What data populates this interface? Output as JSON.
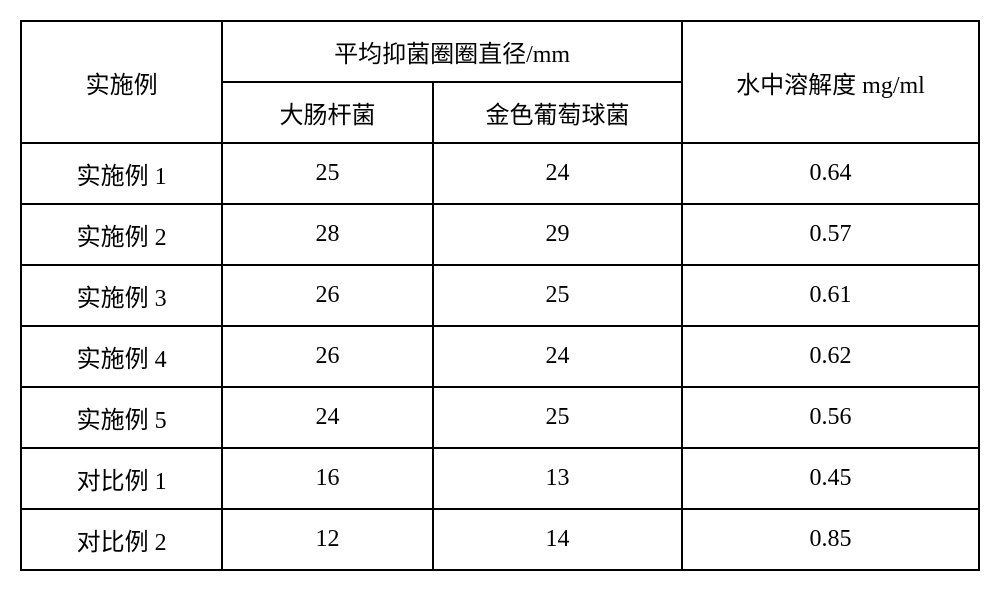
{
  "table": {
    "header": {
      "row_label": "实施例",
      "diameter_group": "平均抑菌圈圈直径/mm",
      "ecoli": "大肠杆菌",
      "staph": "金色葡萄球菌",
      "solubility": "水中溶解度 mg/ml"
    },
    "rows": [
      {
        "label": "实施例 1",
        "ecoli": "25",
        "staph": "24",
        "solubility": "0.64"
      },
      {
        "label": "实施例 2",
        "ecoli": "28",
        "staph": "29",
        "solubility": "0.57"
      },
      {
        "label": "实施例 3",
        "ecoli": "26",
        "staph": "25",
        "solubility": "0.61"
      },
      {
        "label": "实施例 4",
        "ecoli": "26",
        "staph": "24",
        "solubility": "0.62"
      },
      {
        "label": "实施例 5",
        "ecoli": "24",
        "staph": "25",
        "solubility": "0.56"
      },
      {
        "label": "对比例 1",
        "ecoli": "16",
        "staph": "13",
        "solubility": "0.45"
      },
      {
        "label": "对比例 2",
        "ecoli": "12",
        "staph": "14",
        "solubility": "0.85"
      }
    ],
    "styling": {
      "border_color": "#000000",
      "border_width": 2,
      "background_color": "#ffffff",
      "text_color": "#000000",
      "font_size": 24,
      "cell_padding": "12px 8px",
      "column_widths": [
        "21%",
        "22%",
        "26%",
        "31%"
      ],
      "text_align": "center"
    }
  }
}
